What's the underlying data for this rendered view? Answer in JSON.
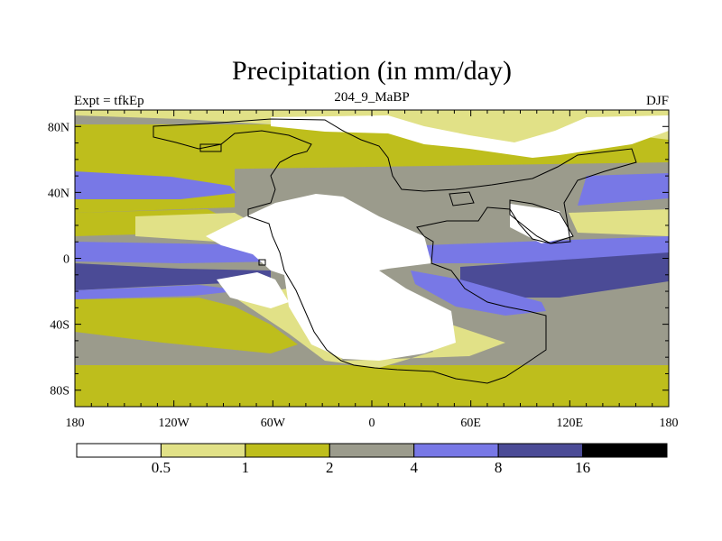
{
  "title": "Precipitation (in mm/day)",
  "left_label": "Expt = tfkEp",
  "center_label": "204_9_MaBP",
  "right_label": "DJF",
  "lat_labels": [
    {
      "lat": 80,
      "text": "80N"
    },
    {
      "lat": 40,
      "text": "40N"
    },
    {
      "lat": 0,
      "text": "0"
    },
    {
      "lat": -40,
      "text": "40S"
    },
    {
      "lat": -80,
      "text": "80S"
    }
  ],
  "lon_labels": [
    {
      "lon": -180,
      "text": "180"
    },
    {
      "lon": -120,
      "text": "120W"
    },
    {
      "lon": -60,
      "text": "60W"
    },
    {
      "lon": 0,
      "text": "0"
    },
    {
      "lon": 60,
      "text": "60E"
    },
    {
      "lon": 120,
      "text": "120E"
    },
    {
      "lon": 180,
      "text": "180"
    }
  ],
  "colorbar": {
    "colors": [
      "#ffffff",
      "#e1e187",
      "#bebe1c",
      "#9b9b8c",
      "#7878e6",
      "#4b4b96",
      "#000000"
    ],
    "labels": [
      "0.5",
      "1",
      "2",
      "4",
      "8",
      "16"
    ]
  },
  "map_colors": {
    "ocean_dry": "#9b9b8c",
    "band_yellow": "#bebe1c",
    "band_light": "#e1e187",
    "band_blue": "#7878e6",
    "band_dark": "#4b4b96",
    "desert": "#ffffff",
    "coast": "#000000"
  }
}
